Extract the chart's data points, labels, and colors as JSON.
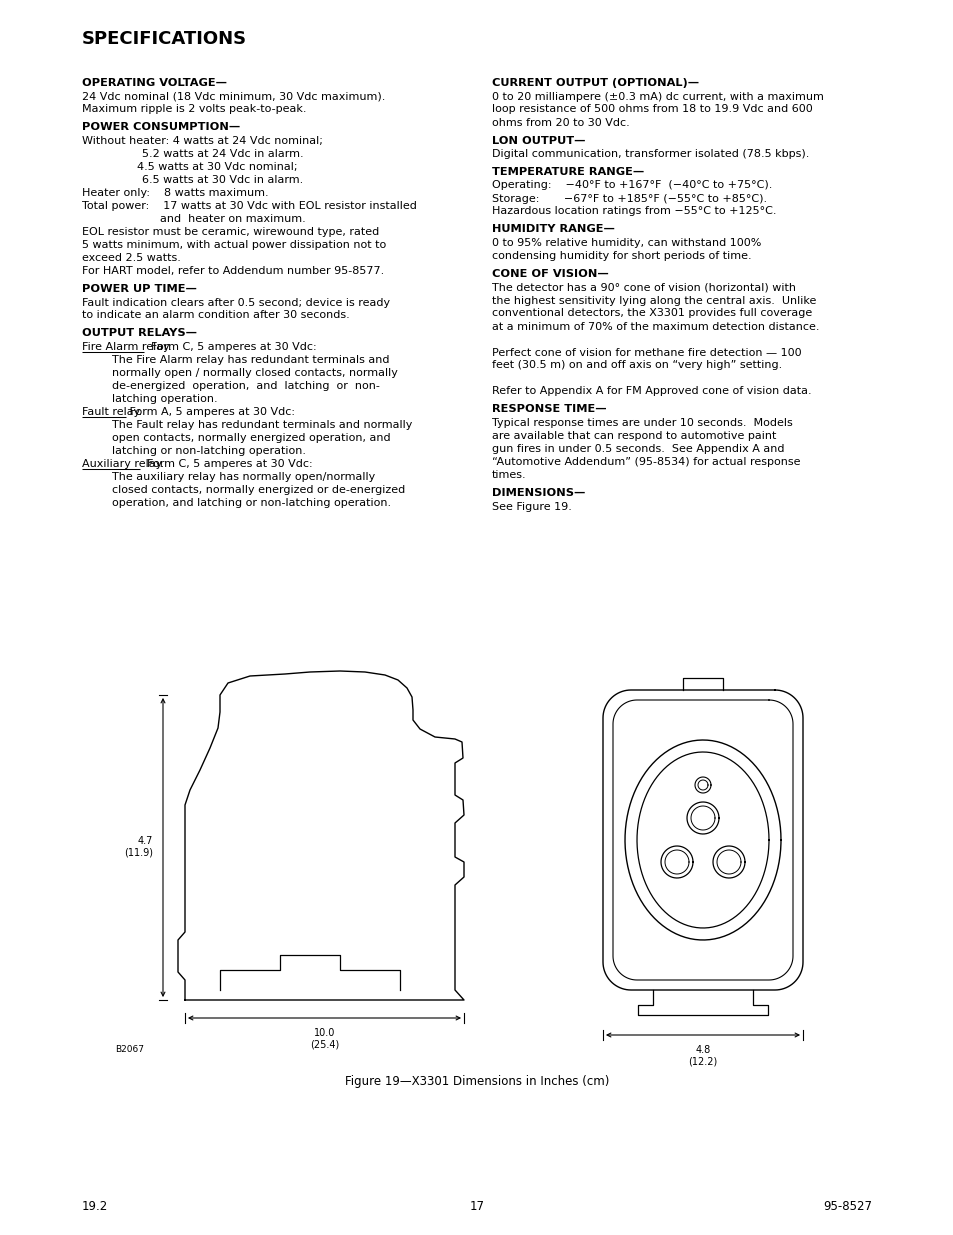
{
  "title": "SPECIFICATIONS",
  "bg_color": "#ffffff",
  "page_left": "19.2",
  "page_center": "17",
  "page_right": "95-8527",
  "left_sections": [
    {
      "heading": "OPERATING VOLTAGE—",
      "lines": [
        {
          "t": "24 Vdc nominal (18 Vdc minimum, 30 Vdc maximum).",
          "i": 0
        },
        {
          "t": "Maximum ripple is 2 volts peak-to-peak.",
          "i": 0
        }
      ]
    },
    {
      "heading": "POWER CONSUMPTION—",
      "lines": [
        {
          "t": "Without heater: 4 watts at 24 Vdc nominal;",
          "i": 0
        },
        {
          "t": "5.2 watts at 24 Vdc in alarm.",
          "i": 60
        },
        {
          "t": "4.5 watts at 30 Vdc nominal;",
          "i": 55
        },
        {
          "t": "6.5 watts at 30 Vdc in alarm.",
          "i": 60
        },
        {
          "t": "Heater only:    8 watts maximum.",
          "i": 0
        },
        {
          "t": "Total power:    17 watts at 30 Vdc with EOL resistor installed",
          "i": 0
        },
        {
          "t": "and  heater on maximum.",
          "i": 78
        },
        {
          "t": "EOL resistor must be ceramic, wirewound type, rated",
          "i": 0
        },
        {
          "t": "5 watts minimum, with actual power dissipation not to",
          "i": 0
        },
        {
          "t": "exceed 2.5 watts.",
          "i": 0
        },
        {
          "t": "For HART model, refer to Addendum number 95-8577.",
          "i": 0
        }
      ]
    },
    {
      "heading": "POWER UP TIME—",
      "lines": [
        {
          "t": "Fault indication clears after 0.5 second; device is ready",
          "i": 0
        },
        {
          "t": "to indicate an alarm condition after 30 seconds.",
          "i": 0
        }
      ]
    },
    {
      "heading": "OUTPUT RELAYS—",
      "lines": [
        {
          "t": "Fire Alarm relay.",
          "i": 0,
          "ul": true,
          "inline": "  Form C, 5 amperes at 30 Vdc:"
        },
        {
          "t": "The Fire Alarm relay has redundant terminals and",
          "i": 30
        },
        {
          "t": "normally open / normally closed contacts, normally",
          "i": 30
        },
        {
          "t": "de-energized  operation,  and  latching  or  non-",
          "i": 30
        },
        {
          "t": "latching operation.",
          "i": 30
        },
        {
          "t": "Fault relay.",
          "i": 0,
          "ul": true,
          "inline": " Form A, 5 amperes at 30 Vdc:"
        },
        {
          "t": "The Fault relay has redundant terminals and normally",
          "i": 30
        },
        {
          "t": "open contacts, normally energized operation, and",
          "i": 30
        },
        {
          "t": "latching or non-latching operation.",
          "i": 30
        },
        {
          "t": "Auxiliary relay.",
          "i": 0,
          "ul": true,
          "inline": "  Form C, 5 amperes at 30 Vdc:"
        },
        {
          "t": "The auxiliary relay has normally open/normally",
          "i": 30
        },
        {
          "t": "closed contacts, normally energized or de-energized",
          "i": 30
        },
        {
          "t": "operation, and latching or non-latching operation.",
          "i": 30
        }
      ]
    }
  ],
  "right_sections": [
    {
      "heading": "CURRENT OUTPUT (OPTIONAL)—",
      "lines": [
        {
          "t": "0 to 20 milliampere (±0.3 mA) dc current, with a maximum",
          "i": 0
        },
        {
          "t": "loop resistance of 500 ohms from 18 to 19.9 Vdc and 600",
          "i": 0
        },
        {
          "t": "ohms from 20 to 30 Vdc.",
          "i": 0
        }
      ]
    },
    {
      "heading": "LON OUTPUT—",
      "lines": [
        {
          "t": "Digital communication, transformer isolated (78.5 kbps).",
          "i": 0
        }
      ]
    },
    {
      "heading": "TEMPERATURE RANGE—",
      "lines": [
        {
          "t": "Operating:    −40°F to +167°F  (−40°C to +75°C).",
          "i": 0
        },
        {
          "t": "Storage:       −67°F to +185°F (−55°C to +85°C).",
          "i": 0
        },
        {
          "t": "Hazardous location ratings from −55°C to +125°C.",
          "i": 0
        }
      ]
    },
    {
      "heading": "HUMIDITY RANGE—",
      "lines": [
        {
          "t": "0 to 95% relative humidity, can withstand 100%",
          "i": 0
        },
        {
          "t": "condensing humidity for short periods of time.",
          "i": 0
        }
      ]
    },
    {
      "heading": "CONE OF VISION—",
      "lines": [
        {
          "t": "The detector has a 90° cone of vision (horizontal) with",
          "i": 0
        },
        {
          "t": "the highest sensitivity lying along the central axis.  Unlike",
          "i": 0
        },
        {
          "t": "conventional detectors, the X3301 provides full coverage",
          "i": 0
        },
        {
          "t": "at a minimum of 70% of the maximum detection distance.",
          "i": 0
        },
        {
          "t": "",
          "i": 0
        },
        {
          "t": "Perfect cone of vision for methane fire detection — 100",
          "i": 0
        },
        {
          "t": "feet (30.5 m) on and off axis on “very high” setting.",
          "i": 0
        },
        {
          "t": "",
          "i": 0
        },
        {
          "t": "Refer to Appendix A for FM Approved cone of vision data.",
          "i": 0
        }
      ]
    },
    {
      "heading": "RESPONSE TIME—",
      "lines": [
        {
          "t": "Typical response times are under 10 seconds.  Models",
          "i": 0
        },
        {
          "t": "are available that can respond to automotive paint",
          "i": 0
        },
        {
          "t": "gun fires in under 0.5 seconds.  See Appendix A and",
          "i": 0
        },
        {
          "t": "“Automotive Addendum” (95-8534) for actual response",
          "i": 0
        },
        {
          "t": "times.",
          "i": 0
        }
      ]
    },
    {
      "heading": "DIMENSIONS—",
      "lines": [
        {
          "t": "See Figure 19.",
          "i": 0
        }
      ]
    }
  ],
  "figure_caption": "Figure 19—X3301 Dimensions in Inches (cm)",
  "figure_label": "B2067",
  "dim_height_label": "4.7\n(11.9)",
  "dim_width_label": "10.0\n(25.4)",
  "dim_front_label": "4.8\n(12.2)"
}
